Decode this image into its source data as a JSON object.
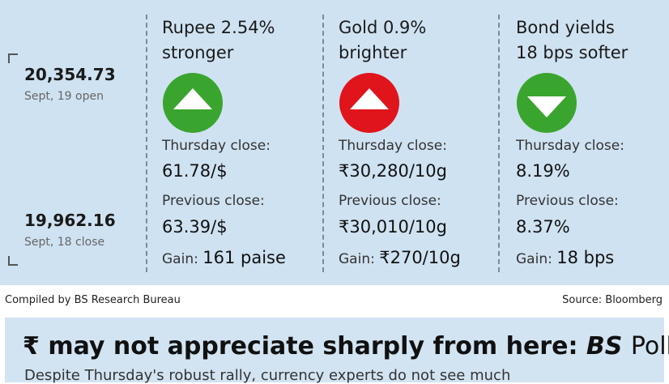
{
  "market": {
    "high": {
      "value": "20,354.73",
      "label": "Sept, 19 open"
    },
    "low": {
      "value": "19,962.16",
      "label": "Sept, 18 close"
    }
  },
  "columns": [
    {
      "title": [
        "Rupee 2.54%",
        "stronger"
      ],
      "close_label": "Thursday close:",
      "close": "61.78/$",
      "prev_label": "Previous close:",
      "prev": "63.39/$",
      "gain_label": "Gain:",
      "gain": "161 paise"
    },
    {
      "title": [
        "Gold 0.9%",
        "brighter"
      ],
      "close_label": "Thursday close:",
      "close": "₹30,280/10g",
      "prev_label": "Previous close:",
      "prev": "₹30,010/10g",
      "gain_label": "Gain:",
      "gain": "₹270/10g"
    },
    {
      "title": [
        "Bond yields",
        "18 bps softer"
      ],
      "close_label": "Thursday close:",
      "close": "8.19%",
      "prev_label": "Previous close:",
      "prev": "8.37%",
      "gain_label": "Gain:",
      "gain": "18 bps"
    }
  ],
  "footer": {
    "compiled": "Compiled by BS Research Bureau",
    "source": "Source: Bloomberg"
  },
  "headline": {
    "text": "₹ may not appreciate sharply from here:",
    "emphasis": "BS",
    "suffix": "Poll"
  },
  "subhead": "Despite Thursday's robust rally, currency experts do not see much"
}
